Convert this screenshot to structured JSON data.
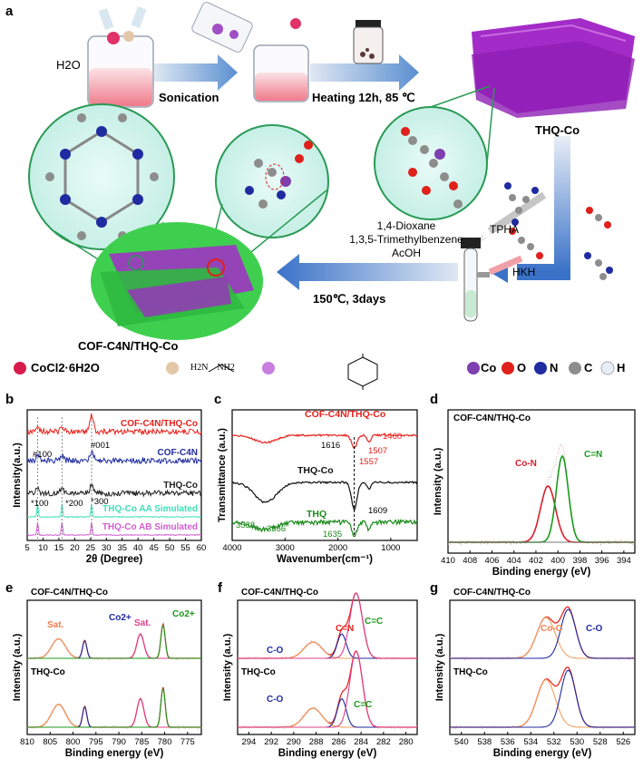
{
  "panel_labels": {
    "a": "a",
    "b": "b",
    "c": "c",
    "d": "d",
    "e": "e",
    "f": "f",
    "g": "g"
  },
  "schematic": {
    "water": "H2O",
    "step1": "Sonication",
    "step2": "Heating 12h, 85 ℃",
    "thq_co": "THQ-Co",
    "tpha": "TPHA",
    "hkh": "HKH",
    "solvents": [
      "1,4-Dioxane",
      "1,3,5-Trimethylbenzene",
      "AcOH"
    ],
    "step3": "150℃, 3days",
    "cof": "COF-C4N/THQ-Co"
  },
  "legend": {
    "cocl2": "CoCl2·6H2O",
    "en": "H2N    NH2",
    "atoms": [
      "Co",
      "O",
      "N",
      "C",
      "H"
    ],
    "colors": {
      "Co": "#7e3fb0",
      "O": "#e0201b",
      "N": "#1f2ba0",
      "C": "#8d8d8d",
      "H": "#e8eef5",
      "CoCl2": "#d81b4a"
    }
  },
  "chart_data": [
    {
      "panel": "b",
      "type": "line",
      "xlabel": "2θ (Degree)",
      "ylabel": "Intensity(a.u.)",
      "xlim": [
        5,
        60
      ],
      "xticks": [
        5,
        10,
        15,
        20,
        25,
        30,
        35,
        40,
        45,
        50,
        55,
        60
      ],
      "series": [
        {
          "name": "COF-C4N/THQ-Co",
          "color": "#e8201b"
        },
        {
          "name": "COF-C4N",
          "color": "#1f2ba0"
        },
        {
          "name": "THQ-Co",
          "color": "#222222"
        },
        {
          "name": "THQ-Co AA Simulated",
          "color": "#3ee0b8"
        },
        {
          "name": "THQ-Co AB Simulated",
          "color": "#d05ed0"
        }
      ],
      "annotations": [
        "#100",
        "#001",
        "*100",
        "*200",
        "*300"
      ]
    },
    {
      "panel": "c",
      "type": "line",
      "xlabel": "Wavenumber(cm⁻¹)",
      "ylabel": "Transmittance (a.u.)",
      "xlim": [
        4000,
        500
      ],
      "xticks": [
        4000,
        3000,
        2000,
        1000
      ],
      "series": [
        {
          "name": "COF-C4N/THQ-Co",
          "color": "#e8201b"
        },
        {
          "name": "THQ-Co",
          "color": "#111111"
        },
        {
          "name": "THQ",
          "color": "#1a8a1a"
        }
      ],
      "annotations": [
        "1460",
        "1616",
        "1507",
        "1557",
        "1609",
        "3538",
        "3366",
        "1635"
      ]
    },
    {
      "panel": "d",
      "type": "line",
      "title": "COF-C4N/THQ-Co",
      "xlabel": "Binding energy (eV)",
      "ylabel": "Intensity (a.u.)",
      "xlim": [
        410,
        393
      ],
      "xticks": [
        410,
        408,
        406,
        404,
        402,
        400,
        398,
        396,
        394
      ],
      "peaks": [
        {
          "name": "Co-N",
          "center": 400.9,
          "color": "#d9202a"
        },
        {
          "name": "C=N",
          "center": 399.6,
          "color": "#1a9a1a"
        }
      ]
    },
    {
      "panel": "e",
      "type": "line",
      "xlabel": "Binding energy (eV)",
      "ylabel": "Intensity (a.u.)",
      "xlim": [
        810,
        772
      ],
      "xticks": [
        810,
        805,
        800,
        795,
        790,
        785,
        780,
        775
      ],
      "samples": [
        "COF-C4N/THQ-Co",
        "THQ-Co"
      ],
      "annotations": [
        "Sat.",
        "Co2+",
        "Sat.",
        "Co2+"
      ]
    },
    {
      "panel": "f",
      "type": "line",
      "xlabel": "Binding energy (eV)",
      "ylabel": "Intensity (a.u.)",
      "xlim": [
        295,
        279
      ],
      "xticks": [
        294,
        292,
        290,
        288,
        286,
        284,
        282,
        280
      ],
      "samples": [
        "COF-C4N/THQ-Co",
        "THQ-Co"
      ],
      "annotations": [
        "C=N",
        "C=C",
        "C-O",
        "C-O",
        "C=C"
      ]
    },
    {
      "panel": "g",
      "type": "line",
      "xlabel": "Binding energy (eV)",
      "ylabel": "Intensity (a.u.)",
      "xlim": [
        541,
        525
      ],
      "xticks": [
        540,
        538,
        536,
        534,
        532,
        530,
        528,
        526
      ],
      "samples": [
        "COF-C4N/THQ-Co",
        "THQ-Co"
      ],
      "annotations": [
        "Co-O",
        "C-O"
      ]
    }
  ]
}
